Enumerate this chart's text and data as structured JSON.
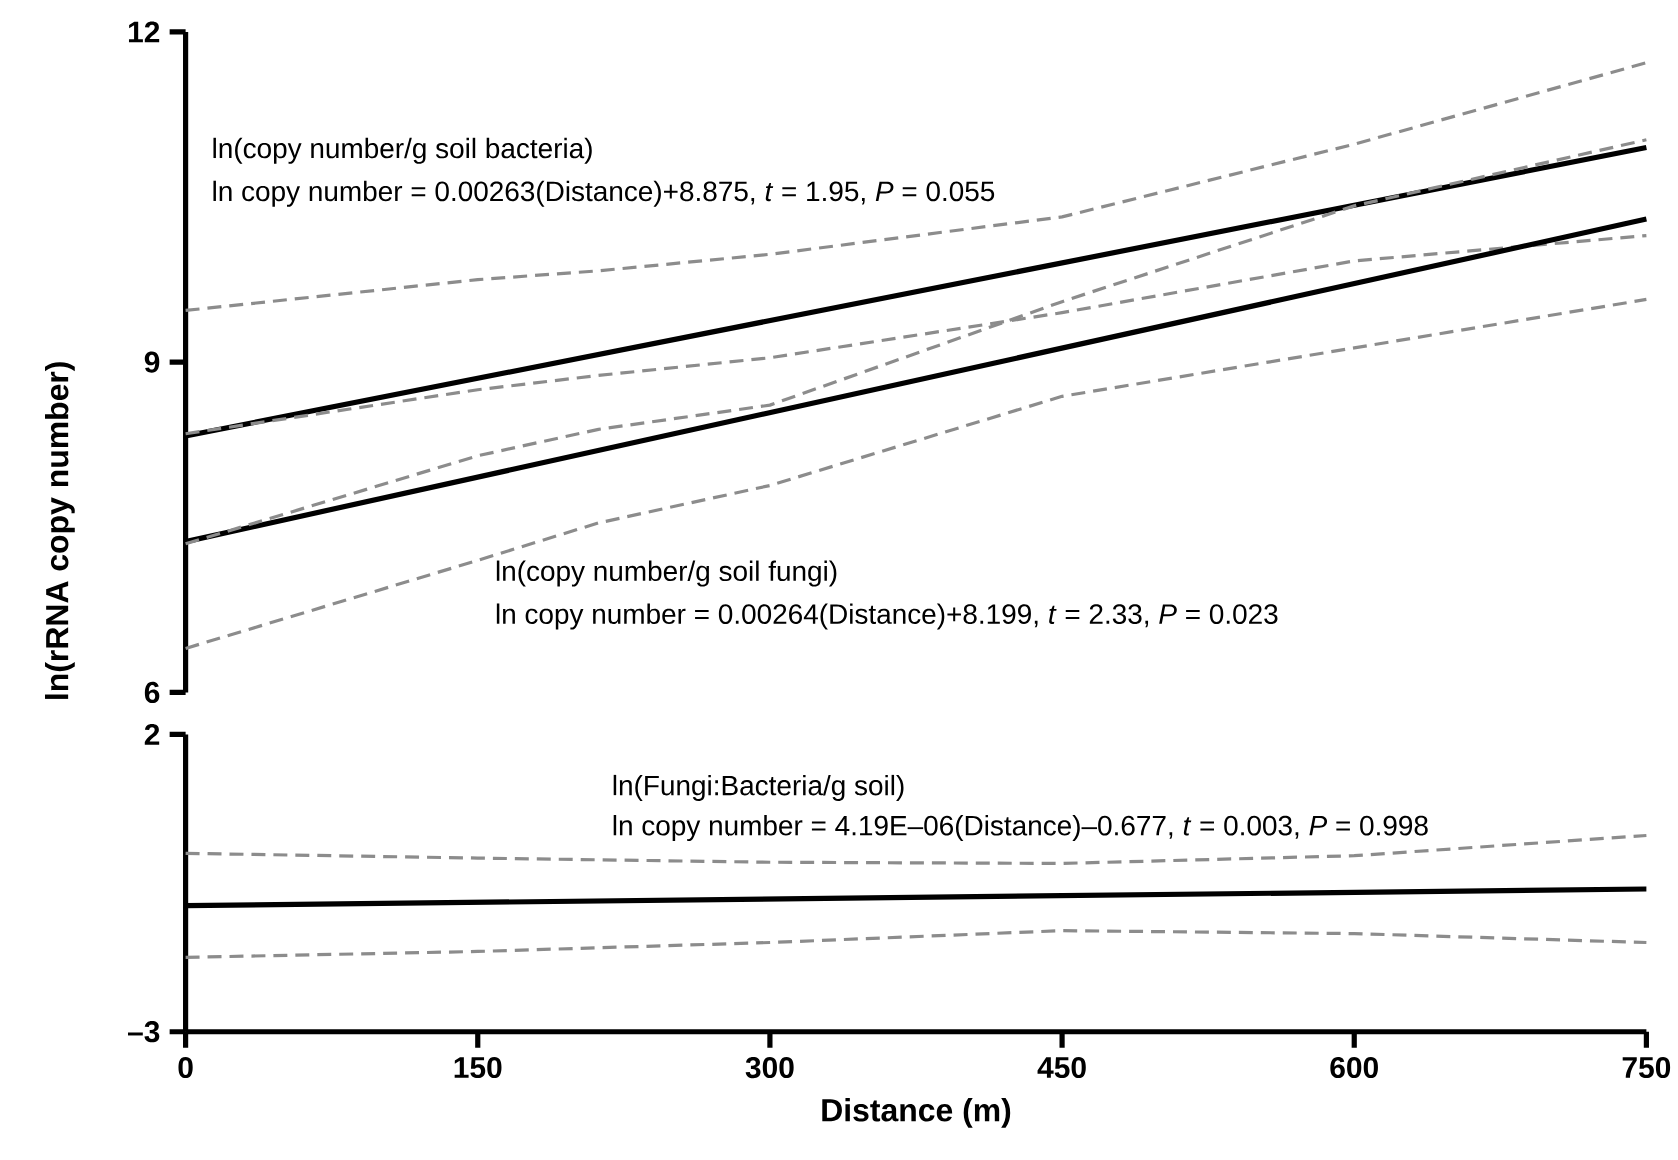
{
  "chart_data": [
    {
      "type": "line",
      "ylabel": "ln(rRNA copy number)",
      "xlim": [
        0,
        750
      ],
      "ylim": [
        6,
        12
      ],
      "yticks": [
        6,
        9,
        12
      ],
      "tick_labels": "y",
      "annotations": [
        "ln(copy number/g soil bacteria)",
        "ln copy number = 0.00263(Distance)+8.875, *t* = 1.95, *P* = 0.055",
        "ln(copy number/g soil fungi)",
        "ln copy number = 0.00264(Distance)+8.199, *t* = 2.33, *P* = 0.023"
      ],
      "series": [
        {
          "color": "#000000",
          "line_style": "solid",
          "x": [
            0,
            750
          ],
          "values": [
            8.33,
            10.95
          ]
        },
        {
          "color": "#8c8c8c",
          "line_style": "dashed",
          "x": [
            0,
            150,
            212,
            300,
            450,
            600,
            750
          ],
          "values": [
            9.47,
            9.75,
            9.83,
            9.98,
            10.32,
            10.98,
            11.72
          ]
        },
        {
          "color": "#8c8c8c",
          "line_style": "dashed",
          "x": [
            0,
            150,
            212,
            300,
            450,
            600,
            750
          ],
          "values": [
            8.35,
            8.75,
            8.88,
            9.04,
            9.45,
            9.92,
            10.15
          ]
        },
        {
          "color": "#000000",
          "line_style": "solid",
          "x": [
            0,
            750
          ],
          "values": [
            7.37,
            10.3
          ]
        },
        {
          "color": "#8c8c8c",
          "line_style": "dashed",
          "x": [
            0,
            150,
            212,
            300,
            450,
            600,
            750
          ],
          "values": [
            7.35,
            8.15,
            8.39,
            8.61,
            9.55,
            10.42,
            11.02
          ]
        },
        {
          "color": "#8c8c8c",
          "line_style": "dashed",
          "x": [
            0,
            150,
            212,
            300,
            450,
            600,
            750
          ],
          "values": [
            6.4,
            7.2,
            7.54,
            7.88,
            8.69,
            9.13,
            9.57
          ]
        }
      ]
    },
    {
      "type": "line",
      "xlabel": "Distance (m)",
      "xlim": [
        0,
        750
      ],
      "xticks": [
        0,
        150,
        300,
        450,
        600,
        750
      ],
      "ylim": [
        -3,
        2
      ],
      "yticks": [
        {
          "value": -3,
          "label": "–3"
        },
        2
      ],
      "annotations": [
        "ln(Fungi:Bacteria/g soil)",
        "ln copy number = 4.19E–06(Distance)–0.677, *t* = 0.003, *P* = 0.998"
      ],
      "series": [
        {
          "color": "#000000",
          "line_style": "solid",
          "x": [
            0,
            750
          ],
          "values": [
            -0.88,
            -0.6
          ]
        },
        {
          "color": "#8c8c8c",
          "line_style": "dashed",
          "x": [
            0,
            150,
            300,
            450,
            600,
            750
          ],
          "values": [
            0.0,
            -0.08,
            -0.15,
            -0.17,
            -0.04,
            0.3
          ]
        },
        {
          "color": "#8c8c8c",
          "line_style": "dashed",
          "x": [
            0,
            150,
            300,
            450,
            600,
            750
          ],
          "values": [
            -1.75,
            -1.65,
            -1.5,
            -1.3,
            -1.35,
            -1.5
          ]
        }
      ]
    }
  ]
}
